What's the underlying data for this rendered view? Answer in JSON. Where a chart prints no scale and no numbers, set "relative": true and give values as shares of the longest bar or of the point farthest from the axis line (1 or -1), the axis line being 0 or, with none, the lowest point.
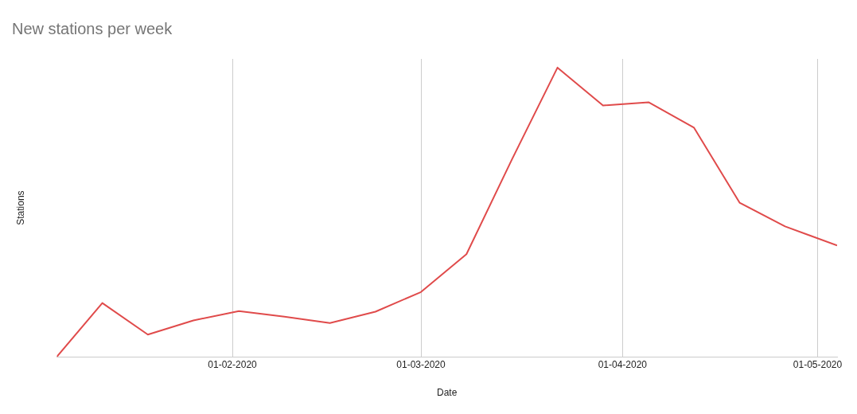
{
  "chart_data": {
    "type": "line",
    "title": "New stations per week",
    "xlabel": "Date",
    "ylabel": "Stations",
    "relative": true,
    "grid": "x",
    "legend": false,
    "marker": "none",
    "line_style": "solid",
    "x": [
      "2020-01-05",
      "2020-01-12",
      "2020-01-19",
      "2020-01-26",
      "2020-02-02",
      "2020-02-09",
      "2020-02-16",
      "2020-02-23",
      "2020-03-01",
      "2020-03-08",
      "2020-03-15",
      "2020-03-22",
      "2020-03-29",
      "2020-04-05",
      "2020-04-12",
      "2020-04-19",
      "2020-04-26",
      "2020-05-04"
    ],
    "xlim": [
      "2020-01-05",
      "2020-05-04"
    ],
    "xticks": [
      {
        "value": "2020-02-01",
        "label": "01-02-2020"
      },
      {
        "value": "2020-03-01",
        "label": "01-03-2020"
      },
      {
        "value": "2020-04-01",
        "label": "01-04-2020"
      },
      {
        "value": "2020-05-01",
        "label": "01-05-2020"
      }
    ],
    "series": [
      {
        "color": "#e04b4b",
        "values": [
          0,
          0.186,
          0.077,
          0.126,
          0.158,
          0.139,
          0.117,
          0.156,
          0.224,
          0.355,
          0.683,
          1,
          0.869,
          0.88,
          0.792,
          0.533,
          0.451,
          0.385
        ]
      }
    ]
  }
}
